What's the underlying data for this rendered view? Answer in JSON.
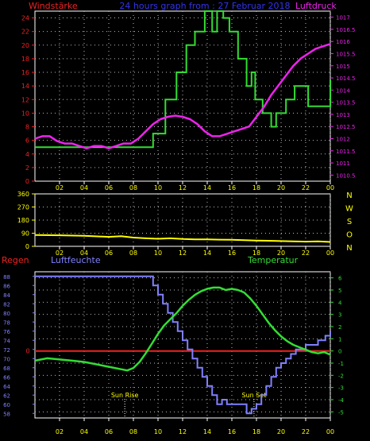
{
  "chart_data": [
    {
      "type": "line",
      "title": "24 hours graph from : 27 Februar 2018",
      "left_axis_label": "Windstärke",
      "right_axis_label": "Luftdruck",
      "y_left_ticks": [
        "0",
        "2",
        "4",
        "6",
        "8",
        "10",
        "12",
        "14",
        "16",
        "18",
        "20",
        "22",
        "24"
      ],
      "y_left_range": [
        0,
        25
      ],
      "y_right_ticks": [
        "1010.5",
        "1011",
        "1011.5",
        "1012",
        "1012.5",
        "1013",
        "1013.5",
        "1014",
        "1014.5",
        "1015",
        "1015.5",
        "1016",
        "1016.5",
        "1017"
      ],
      "y_right_range": [
        1010.25,
        1017.25
      ],
      "x_ticks": [
        "02",
        "04",
        "06",
        "08",
        "10",
        "12",
        "14",
        "16",
        "18",
        "20",
        "22",
        "00"
      ],
      "x_range": [
        0,
        24
      ],
      "grid": true,
      "colors": {
        "wind": "#33dd33",
        "pressure": "#ee22ee",
        "left_axis": "#ee2222",
        "right_axis": "#ee22ee",
        "title": "#3333ee"
      },
      "series": [
        {
          "name": "Windstärke",
          "axis": "left",
          "step": true,
          "x": [
            0,
            8.9,
            9.6,
            10.6,
            11.5,
            12.3,
            13.0,
            13.8,
            14.4,
            14.8,
            15.3,
            15.8,
            16.5,
            17.2,
            17.6,
            17.9,
            18.5,
            19.2,
            19.6,
            20.4,
            21.1,
            22.2,
            23.8,
            24.0
          ],
          "y": [
            5,
            5,
            7,
            12,
            16,
            20,
            22,
            25,
            22,
            25,
            24,
            22,
            18,
            14,
            16,
            12,
            10,
            8,
            10,
            12,
            14,
            11,
            11,
            15
          ]
        },
        {
          "name": "Luftdruck",
          "axis": "right",
          "x": [
            0,
            0.6,
            1.2,
            1.8,
            2.4,
            3,
            3.6,
            4.2,
            4.8,
            5.4,
            6,
            6.6,
            7.2,
            7.8,
            8.4,
            9,
            9.6,
            10.2,
            10.8,
            11.4,
            12,
            12.6,
            13.2,
            13.8,
            14.4,
            15,
            15.6,
            16.2,
            16.8,
            17.4,
            18,
            18.6,
            19.2,
            19.8,
            20.4,
            21,
            21.6,
            22.2,
            22.8,
            23.4,
            24
          ],
          "y": [
            1012.0,
            1012.1,
            1012.1,
            1011.9,
            1011.8,
            1011.8,
            1011.7,
            1011.6,
            1011.7,
            1011.7,
            1011.6,
            1011.7,
            1011.8,
            1011.8,
            1012.0,
            1012.3,
            1012.6,
            1012.8,
            1012.9,
            1012.95,
            1012.9,
            1012.8,
            1012.6,
            1012.3,
            1012.1,
            1012.1,
            1012.2,
            1012.3,
            1012.4,
            1012.5,
            1012.9,
            1013.3,
            1013.8,
            1014.2,
            1014.6,
            1015.0,
            1015.3,
            1015.5,
            1015.7,
            1015.8,
            1015.9
          ]
        }
      ]
    },
    {
      "type": "line",
      "left_ticks": [
        "360",
        "270",
        "180",
        "90",
        "0"
      ],
      "y_range": [
        0,
        360
      ],
      "right_labels": [
        "N",
        "W",
        "S",
        "O",
        "N"
      ],
      "x_ticks": [
        "02",
        "04",
        "06",
        "08",
        "10",
        "12",
        "14",
        "16",
        "18",
        "20",
        "22",
        "00"
      ],
      "x_range": [
        0,
        24
      ],
      "grid": true,
      "colors": {
        "series": "#ffff00",
        "axis": "#ffff00"
      },
      "series": [
        {
          "name": "",
          "x": [
            0,
            2,
            4,
            6,
            7,
            8,
            9,
            10,
            11,
            12,
            13,
            14,
            15,
            16,
            17,
            18,
            19,
            20,
            21,
            22,
            23,
            24
          ],
          "y": [
            78,
            76,
            72,
            65,
            70,
            60,
            55,
            52,
            55,
            50,
            48,
            48,
            46,
            45,
            42,
            40,
            38,
            36,
            34,
            32,
            34,
            30
          ]
        }
      ]
    },
    {
      "type": "line",
      "left_label": "Regen",
      "left_series_label": "Luftfeuchte",
      "right_label": "Temperatur",
      "y_left_ticks": [
        "58",
        "60",
        "62",
        "64",
        "66",
        "68",
        "70",
        "72",
        "74",
        "76",
        "78",
        "80",
        "82",
        "84",
        "86",
        "88"
      ],
      "y_left_range": [
        57,
        89
      ],
      "y_right_ticks": [
        "6",
        "5",
        "4",
        "3",
        "2",
        "1",
        "0",
        "-1",
        "-2",
        "-3",
        "-4",
        "-5"
      ],
      "y_right_range": [
        -5.5,
        6.5
      ],
      "rain_tick": "0",
      "x_ticks": [
        "02",
        "04",
        "06",
        "08",
        "10",
        "12",
        "14",
        "16",
        "18",
        "20",
        "22",
        "00"
      ],
      "x_range": [
        0,
        24
      ],
      "grid": true,
      "annotations": [
        {
          "text": "Sun Rise",
          "x": 7.3
        },
        {
          "text": "Sun Set",
          "x": 17.8
        }
      ],
      "colors": {
        "humidity": "#8080ff",
        "temperature": "#33dd33",
        "rain": "#ee2222",
        "left_axis": "#8080ff",
        "right_axis": "#33dd33"
      },
      "series": [
        {
          "name": "Luftfeuchte",
          "axis": "left",
          "step": true,
          "x": [
            0,
            9.2,
            9.6,
            10.0,
            10.4,
            10.8,
            11.2,
            11.6,
            12.0,
            12.4,
            12.8,
            13.2,
            13.6,
            14.0,
            14.4,
            14.8,
            15.2,
            15.6,
            16.0,
            16.4,
            16.8,
            17.2,
            17.6,
            18.0,
            18.4,
            18.8,
            19.2,
            19.6,
            20.0,
            20.4,
            20.8,
            21.2,
            21.6,
            22.0,
            22.4,
            23.0,
            23.6,
            24
          ],
          "y": [
            88,
            88,
            86,
            84,
            82,
            80,
            78,
            76,
            74,
            72,
            70,
            68,
            66,
            64,
            62,
            60,
            61,
            60,
            60,
            60,
            60,
            58,
            59,
            60,
            62,
            64,
            66,
            68,
            69,
            70,
            71,
            72,
            72,
            73,
            73,
            74,
            75,
            76
          ]
        },
        {
          "name": "Temperatur",
          "axis": "right",
          "x": [
            0,
            1,
            2,
            3,
            4,
            5,
            6,
            7,
            7.5,
            8,
            8.5,
            9,
            9.5,
            10,
            10.5,
            11,
            11.5,
            12,
            12.5,
            13,
            13.5,
            14,
            14.5,
            15,
            15.5,
            16,
            16.5,
            17,
            17.5,
            18,
            18.5,
            19,
            19.5,
            20,
            20.5,
            21,
            21.5,
            22,
            22.5,
            23,
            23.5,
            24
          ],
          "y": [
            -0.8,
            -0.6,
            -0.7,
            -0.8,
            -0.9,
            -1.1,
            -1.3,
            -1.5,
            -1.6,
            -1.4,
            -0.9,
            -0.2,
            0.6,
            1.4,
            2.1,
            2.6,
            3.1,
            3.7,
            4.2,
            4.6,
            4.9,
            5.1,
            5.2,
            5.2,
            5.0,
            5.1,
            5.0,
            4.8,
            4.3,
            3.7,
            3.0,
            2.3,
            1.7,
            1.2,
            0.8,
            0.5,
            0.3,
            0.1,
            -0.1,
            -0.2,
            -0.1,
            -0.3
          ]
        },
        {
          "name": "Regen",
          "axis": "rain",
          "x": [
            0,
            24
          ],
          "y": [
            0,
            0
          ]
        }
      ]
    }
  ]
}
